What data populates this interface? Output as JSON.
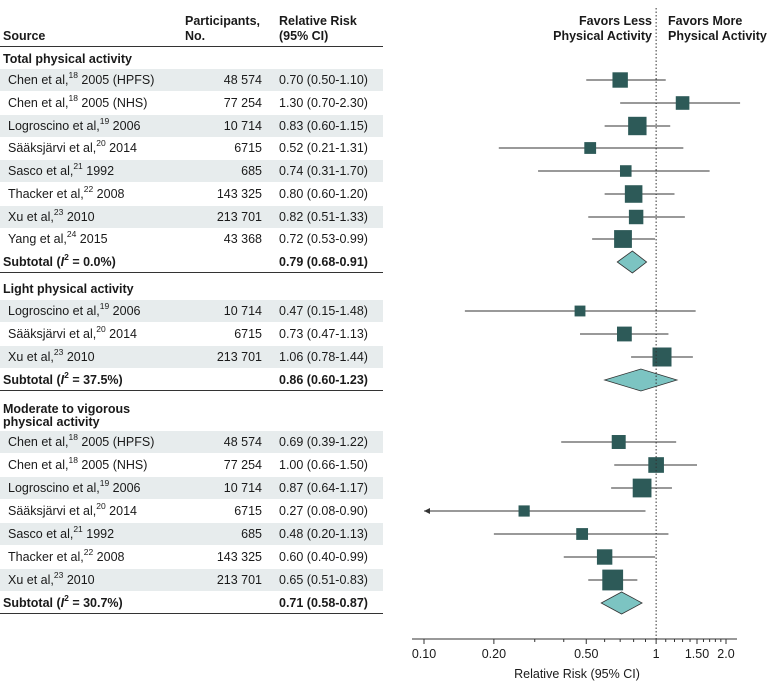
{
  "header": {
    "source": "Source",
    "participants_line1": "Participants,",
    "participants_line2": "No.",
    "rr_line1": "Relative Risk",
    "rr_line2": "(95% CI)",
    "favors_less_line1": "Favors Less",
    "favors_less_line2": "Physical Activity",
    "favors_more_line1": "Favors More",
    "favors_more_line2": "Physical Activity"
  },
  "groups": [
    {
      "title": "Total physical activity",
      "title2": "",
      "studies": [
        {
          "author": "Chen et al,",
          "ref": "18",
          "detail": " 2005 (HPFS)",
          "participants": "48 574",
          "ci_text": "0.70 (0.50-1.10)",
          "rr": 0.7,
          "lo": 0.5,
          "hi": 1.1,
          "weight": 0.7
        },
        {
          "author": "Chen et al,",
          "ref": "18",
          "detail": " 2005 (NHS)",
          "participants": "77 254",
          "ci_text": "1.30 (0.70-2.30)",
          "rr": 1.3,
          "lo": 0.7,
          "hi": 2.3,
          "weight": 0.55
        },
        {
          "author": "Logroscino et al,",
          "ref": "19",
          "detail": " 2006",
          "participants": "10 714",
          "ci_text": "0.83 (0.60-1.15)",
          "rr": 0.83,
          "lo": 0.6,
          "hi": 1.15,
          "weight": 0.95
        },
        {
          "author": "Sääksjärvi et al,",
          "ref": "20",
          "detail": " 2014",
          "participants": "6715",
          "ci_text": "0.52 (0.21-1.31)",
          "rr": 0.52,
          "lo": 0.21,
          "hi": 1.31,
          "weight": 0.4
        },
        {
          "author": "Sasco et al,",
          "ref": "21",
          "detail": " 1992",
          "participants": "685",
          "ci_text": "0.74 (0.31-1.70)",
          "rr": 0.74,
          "lo": 0.31,
          "hi": 1.7,
          "weight": 0.38
        },
        {
          "author": "Thacker et al,",
          "ref": "22",
          "detail": " 2008",
          "participants": "143 325",
          "ci_text": "0.80 (0.60-1.20)",
          "rr": 0.8,
          "lo": 0.6,
          "hi": 1.2,
          "weight": 0.88
        },
        {
          "author": "Xu et al,",
          "ref": "23",
          "detail": " 2010",
          "participants": "213 701",
          "ci_text": "0.82 (0.51-1.33)",
          "rr": 0.82,
          "lo": 0.51,
          "hi": 1.33,
          "weight": 0.62
        },
        {
          "author": "Yang et al,",
          "ref": "24",
          "detail": " 2015",
          "participants": "43 368",
          "ci_text": "0.72 (0.53-0.99)",
          "rr": 0.72,
          "lo": 0.53,
          "hi": 0.99,
          "weight": 0.9
        }
      ],
      "subtotal": {
        "label": "Subtotal (",
        "i2_italic": "I",
        "i2_sup": "2",
        "i2_value": " = 0.0%)",
        "ci_text": "0.79 (0.68-0.91)",
        "rr": 0.79,
        "lo": 0.68,
        "hi": 0.91
      }
    },
    {
      "title": "Light physical activity",
      "title2": "",
      "studies": [
        {
          "author": "Logroscino et al,",
          "ref": "19",
          "detail": " 2006",
          "participants": "10 714",
          "ci_text": "0.47 (0.15-1.48)",
          "rr": 0.47,
          "lo": 0.15,
          "hi": 1.48,
          "weight": 0.32
        },
        {
          "author": "Sääksjärvi et al,",
          "ref": "20",
          "detail": " 2014",
          "participants": "6715",
          "ci_text": "0.73 (0.47-1.13)",
          "rr": 0.73,
          "lo": 0.47,
          "hi": 1.13,
          "weight": 0.65
        },
        {
          "author": "Xu et al,",
          "ref": "23",
          "detail": " 2010",
          "participants": "213 701",
          "ci_text": "1.06 (0.78-1.44)",
          "rr": 1.06,
          "lo": 0.78,
          "hi": 1.44,
          "weight": 1.0
        }
      ],
      "subtotal": {
        "label": "Subtotal (",
        "i2_italic": "I",
        "i2_sup": "2",
        "i2_value": " = 37.5%)",
        "ci_text": "0.86 (0.60-1.23)",
        "rr": 0.86,
        "lo": 0.6,
        "hi": 1.23
      }
    },
    {
      "title": "Moderate to vigorous",
      "title2": "physical activity",
      "studies": [
        {
          "author": "Chen et al,",
          "ref": "18",
          "detail": " 2005 (HPFS)",
          "participants": "48 574",
          "ci_text": "0.69 (0.39-1.22)",
          "rr": 0.69,
          "lo": 0.39,
          "hi": 1.22,
          "weight": 0.58
        },
        {
          "author": "Chen et al,",
          "ref": "18",
          "detail": " 2005 (NHS)",
          "participants": "77 254",
          "ci_text": "1.00 (0.66-1.50)",
          "rr": 1.0,
          "lo": 0.66,
          "hi": 1.5,
          "weight": 0.72
        },
        {
          "author": "Logroscino et al,",
          "ref": "19",
          "detail": " 2006",
          "participants": "10 714",
          "ci_text": "0.87 (0.64-1.17)",
          "rr": 0.87,
          "lo": 0.64,
          "hi": 1.17,
          "weight": 0.98
        },
        {
          "author": "Sääksjärvi et al,",
          "ref": "20",
          "detail": " 2014",
          "participants": "6715",
          "ci_text": "0.27 (0.08-0.90)",
          "rr": 0.27,
          "lo": 0.08,
          "hi": 0.9,
          "weight": 0.35
        },
        {
          "author": "Sasco et al,",
          "ref": "21",
          "detail": " 1992",
          "participants": "685",
          "ci_text": "0.48 (0.20-1.13)",
          "rr": 0.48,
          "lo": 0.2,
          "hi": 1.13,
          "weight": 0.4
        },
        {
          "author": "Thacker et al,",
          "ref": "22",
          "detail": " 2008",
          "participants": "143 325",
          "ci_text": "0.60 (0.40-0.99)",
          "rr": 0.6,
          "lo": 0.4,
          "hi": 0.99,
          "weight": 0.7
        },
        {
          "author": "Xu et al,",
          "ref": "23",
          "detail": " 2010",
          "participants": "213 701",
          "ci_text": "0.65 (0.51-0.83)",
          "rr": 0.65,
          "lo": 0.51,
          "hi": 0.83,
          "weight": 1.15
        }
      ],
      "subtotal": {
        "label": "Subtotal (",
        "i2_italic": "I",
        "i2_sup": "2",
        "i2_value": " = 30.7%)",
        "ci_text": "0.71 (0.58-0.87)",
        "rr": 0.71,
        "lo": 0.58,
        "hi": 0.87
      }
    }
  ],
  "chart_data": {
    "type": "forest",
    "scale": "log",
    "xlim": [
      0.1,
      2.0
    ],
    "xticks": [
      0.1,
      0.2,
      0.5,
      1,
      1.5,
      2.0
    ],
    "xtick_labels": [
      "0.10",
      "0.20",
      "0.50",
      "1",
      "1.50",
      "2.0"
    ],
    "xlabel": "Relative Risk (95% CI)",
    "reference_line": 1,
    "marker_color": "#2d5a58",
    "diamond_color": "#7cc4c2",
    "row_shade_color": "#e7eced"
  }
}
